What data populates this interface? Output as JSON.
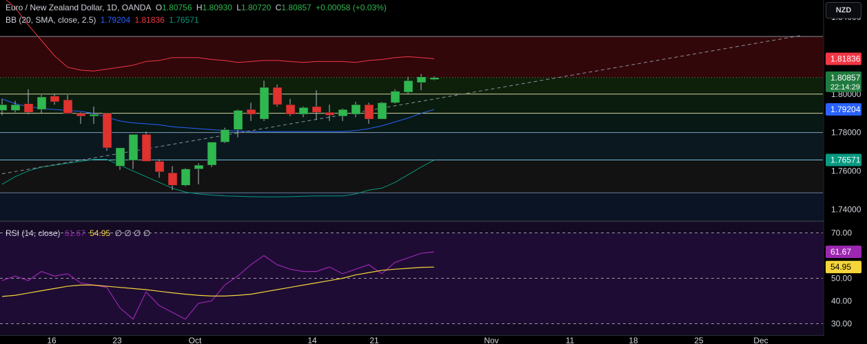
{
  "header": {
    "symbol": "Euro / New Zealand Dollar, 1D, OANDA",
    "o_label": "O",
    "o_value": "1.80756",
    "h_label": "H",
    "h_value": "1.80930",
    "l_label": "L",
    "l_value": "1.80720",
    "c_label": "C",
    "c_value": "1.80857",
    "change": "+0.00058 (+0.03%)"
  },
  "bb_legend": {
    "label": "BB (20, SMA, close, 2.5)",
    "basis": "1.79204",
    "upper": "1.81836",
    "lower": "1.76571"
  },
  "rsi_legend": {
    "label": "RSI (14, close)",
    "rsi": "61.67",
    "ma": "54.95",
    "na": "∅ ∅ ∅ ∅"
  },
  "currency_button": "NZD",
  "colors": {
    "up": "#2fb84f",
    "down": "#e0322f",
    "upper_band": "#f23645",
    "basis": "#2962ff",
    "lower_band": "#089981",
    "rsi": "#9c27b0",
    "rsi_ma": "#f5d53b"
  },
  "chart_data": [
    {
      "type": "candlestick",
      "title": "Euro / New Zealand Dollar, 1D, OANDA",
      "y_range": [
        1.734,
        1.849
      ],
      "y_ticks": [
        "1.84000",
        "1.80000",
        "1.78000",
        "1.76000",
        "1.74000"
      ],
      "x_ticks": [
        "16",
        "23",
        "Oct",
        "14",
        "21",
        "Nov",
        "11",
        "18",
        "25",
        "Dec"
      ],
      "last_price": "1.80857",
      "countdown": "22:14:29",
      "price_tags": [
        {
          "label": "1.81836",
          "color": "#f23645"
        },
        {
          "label": "1.79204",
          "color": "#2962ff"
        },
        {
          "label": "1.76571",
          "color": "#089981"
        }
      ],
      "horizontal_levels": [
        1.83,
        1.8086,
        1.8,
        1.79,
        1.78,
        1.7657,
        1.7486
      ],
      "candles": [
        {
          "o": 1.7915,
          "h": 1.7975,
          "l": 1.789,
          "c": 1.7945
        },
        {
          "o": 1.7915,
          "h": 1.7965,
          "l": 1.7905,
          "c": 1.7945
        },
        {
          "o": 1.795,
          "h": 1.8025,
          "l": 1.7895,
          "c": 1.7905
        },
        {
          "o": 1.792,
          "h": 1.7995,
          "l": 1.79,
          "c": 1.7985
        },
        {
          "o": 1.799,
          "h": 1.8,
          "l": 1.7945,
          "c": 1.796
        },
        {
          "o": 1.797,
          "h": 1.7995,
          "l": 1.79,
          "c": 1.79
        },
        {
          "o": 1.79,
          "h": 1.7905,
          "l": 1.7845,
          "c": 1.7885
        },
        {
          "o": 1.7885,
          "h": 1.7935,
          "l": 1.7845,
          "c": 1.7895
        },
        {
          "o": 1.79,
          "h": 1.79,
          "l": 1.7705,
          "c": 1.772
        },
        {
          "o": 1.7625,
          "h": 1.772,
          "l": 1.7605,
          "c": 1.772
        },
        {
          "o": 1.7655,
          "h": 1.779,
          "l": 1.761,
          "c": 1.779
        },
        {
          "o": 1.779,
          "h": 1.7805,
          "l": 1.765,
          "c": 1.765
        },
        {
          "o": 1.765,
          "h": 1.766,
          "l": 1.7565,
          "c": 1.7595
        },
        {
          "o": 1.759,
          "h": 1.7625,
          "l": 1.75,
          "c": 1.7525
        },
        {
          "o": 1.7525,
          "h": 1.7615,
          "l": 1.752,
          "c": 1.761
        },
        {
          "o": 1.761,
          "h": 1.764,
          "l": 1.753,
          "c": 1.763
        },
        {
          "o": 1.763,
          "h": 1.775,
          "l": 1.762,
          "c": 1.775
        },
        {
          "o": 1.775,
          "h": 1.7825,
          "l": 1.7745,
          "c": 1.7815
        },
        {
          "o": 1.7815,
          "h": 1.792,
          "l": 1.7775,
          "c": 1.7915
        },
        {
          "o": 1.792,
          "h": 1.7955,
          "l": 1.786,
          "c": 1.7895
        },
        {
          "o": 1.787,
          "h": 1.807,
          "l": 1.786,
          "c": 1.8035
        },
        {
          "o": 1.8035,
          "h": 1.805,
          "l": 1.7935,
          "c": 1.7945
        },
        {
          "o": 1.7945,
          "h": 1.7975,
          "l": 1.7885,
          "c": 1.7895
        },
        {
          "o": 1.7895,
          "h": 1.7935,
          "l": 1.788,
          "c": 1.793
        },
        {
          "o": 1.7935,
          "h": 1.802,
          "l": 1.7865,
          "c": 1.7905
        },
        {
          "o": 1.7905,
          "h": 1.7945,
          "l": 1.786,
          "c": 1.789
        },
        {
          "o": 1.7885,
          "h": 1.7925,
          "l": 1.786,
          "c": 1.792
        },
        {
          "o": 1.7895,
          "h": 1.796,
          "l": 1.788,
          "c": 1.7945
        },
        {
          "o": 1.7945,
          "h": 1.7955,
          "l": 1.7845,
          "c": 1.787
        },
        {
          "o": 1.787,
          "h": 1.796,
          "l": 1.787,
          "c": 1.7955
        },
        {
          "o": 1.7955,
          "h": 1.8025,
          "l": 1.795,
          "c": 1.8015
        },
        {
          "o": 1.801,
          "h": 1.809,
          "l": 1.8,
          "c": 1.807
        },
        {
          "o": 1.806,
          "h": 1.8105,
          "l": 1.802,
          "c": 1.809
        },
        {
          "o": 1.8076,
          "h": 1.8093,
          "l": 1.8072,
          "c": 1.8086
        }
      ],
      "upper_band": [
        1.851,
        1.845,
        1.836,
        1.828,
        1.82,
        1.814,
        1.8125,
        1.812,
        1.813,
        1.814,
        1.815,
        1.817,
        1.8175,
        1.819,
        1.819,
        1.819,
        1.818,
        1.8175,
        1.8165,
        1.817,
        1.8175,
        1.8175,
        1.817,
        1.8165,
        1.817,
        1.817,
        1.817,
        1.8165,
        1.8175,
        1.818,
        1.819,
        1.8195,
        1.819,
        1.8184
      ],
      "basis": [
        1.7975,
        1.795,
        1.7935,
        1.7925,
        1.792,
        1.7915,
        1.791,
        1.79,
        1.788,
        1.786,
        1.785,
        1.7845,
        1.784,
        1.783,
        1.7825,
        1.782,
        1.7815,
        1.781,
        1.7808,
        1.7805,
        1.7805,
        1.7805,
        1.7805,
        1.7805,
        1.7805,
        1.7805,
        1.7805,
        1.781,
        1.782,
        1.7835,
        1.7855,
        1.7875,
        1.79,
        1.792
      ],
      "lower_band": [
        1.753,
        1.757,
        1.76,
        1.762,
        1.763,
        1.764,
        1.765,
        1.766,
        1.766,
        1.763,
        1.76,
        1.757,
        1.754,
        1.751,
        1.749,
        1.748,
        1.7475,
        1.747,
        1.7468,
        1.7466,
        1.7465,
        1.7465,
        1.7466,
        1.7468,
        1.747,
        1.747,
        1.747,
        1.748,
        1.75,
        1.751,
        1.754,
        1.758,
        1.762,
        1.7657
      ],
      "trendline": {
        "from": {
          "i": 0,
          "y": 1.7585
        },
        "to": {
          "i": 61,
          "y": 1.8305
        }
      }
    },
    {
      "type": "line",
      "title": "RSI (14, close)",
      "y_range": [
        25,
        75
      ],
      "y_ticks": [
        "70.00",
        "50.00",
        "40.00",
        "30.00"
      ],
      "levels": [
        70,
        50,
        30
      ],
      "series": [
        {
          "name": "RSI",
          "color": "#9c27b0",
          "values": [
            49,
            51,
            49,
            53,
            51,
            52,
            48,
            47,
            46,
            37,
            32,
            44,
            38,
            35,
            32,
            39,
            40,
            47,
            51,
            56,
            60,
            56,
            54,
            53,
            53,
            55,
            52,
            54,
            56,
            52,
            57,
            59,
            61,
            61.67
          ]
        },
        {
          "name": "MA",
          "color": "#f5d53b",
          "values": [
            42,
            42.5,
            43.5,
            44.5,
            45.5,
            46.5,
            47,
            47,
            46.5,
            46,
            45.5,
            45,
            44.3,
            43.6,
            43,
            42.5,
            42.2,
            42.2,
            42.5,
            43,
            44,
            45,
            46,
            47,
            48,
            49,
            50,
            51.5,
            52.5,
            53.5,
            54,
            54.4,
            54.8,
            54.95
          ]
        }
      ],
      "last_values": [
        {
          "label": "61.67",
          "color": "#9c27b0"
        },
        {
          "label": "54.95",
          "color": "#f5d53b"
        }
      ]
    }
  ]
}
